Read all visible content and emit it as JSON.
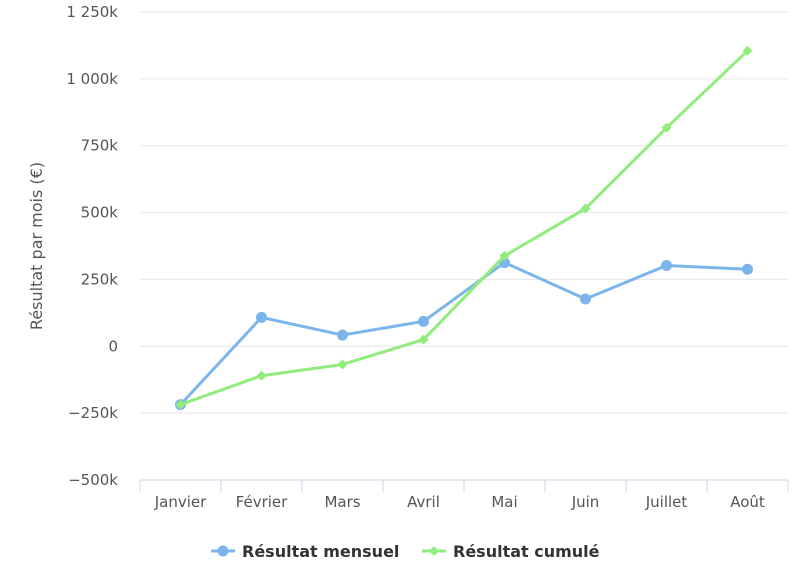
{
  "chart_data": {
    "type": "line",
    "categories": [
      "Janvier",
      "Février",
      "Mars",
      "Avril",
      "Mai",
      "Juin",
      "Juillet",
      "Août"
    ],
    "ylabel": "Résultat par mois (€)",
    "ylim": [
      -500000,
      1250000
    ],
    "yticks": [
      -500000,
      -250000,
      0,
      250000,
      500000,
      750000,
      1000000,
      1250000
    ],
    "ytick_labels": [
      "−500k",
      "−250k",
      "0",
      "250k",
      "500k",
      "750k",
      "1 000k",
      "1 250k"
    ],
    "grid": true,
    "legend": "bottom-center",
    "series": [
      {
        "name": "Résultat mensuel",
        "color": "#7cb5ec",
        "marker": "circle",
        "values": [
          -218000,
          108000,
          42000,
          93000,
          313000,
          177000,
          302000,
          288000
        ]
      },
      {
        "name": "Résultat cumulé",
        "color": "#90ed7d",
        "marker": "diamond",
        "values": [
          -218000,
          -110000,
          -68000,
          25000,
          338000,
          515000,
          817000,
          1105000
        ]
      }
    ]
  }
}
